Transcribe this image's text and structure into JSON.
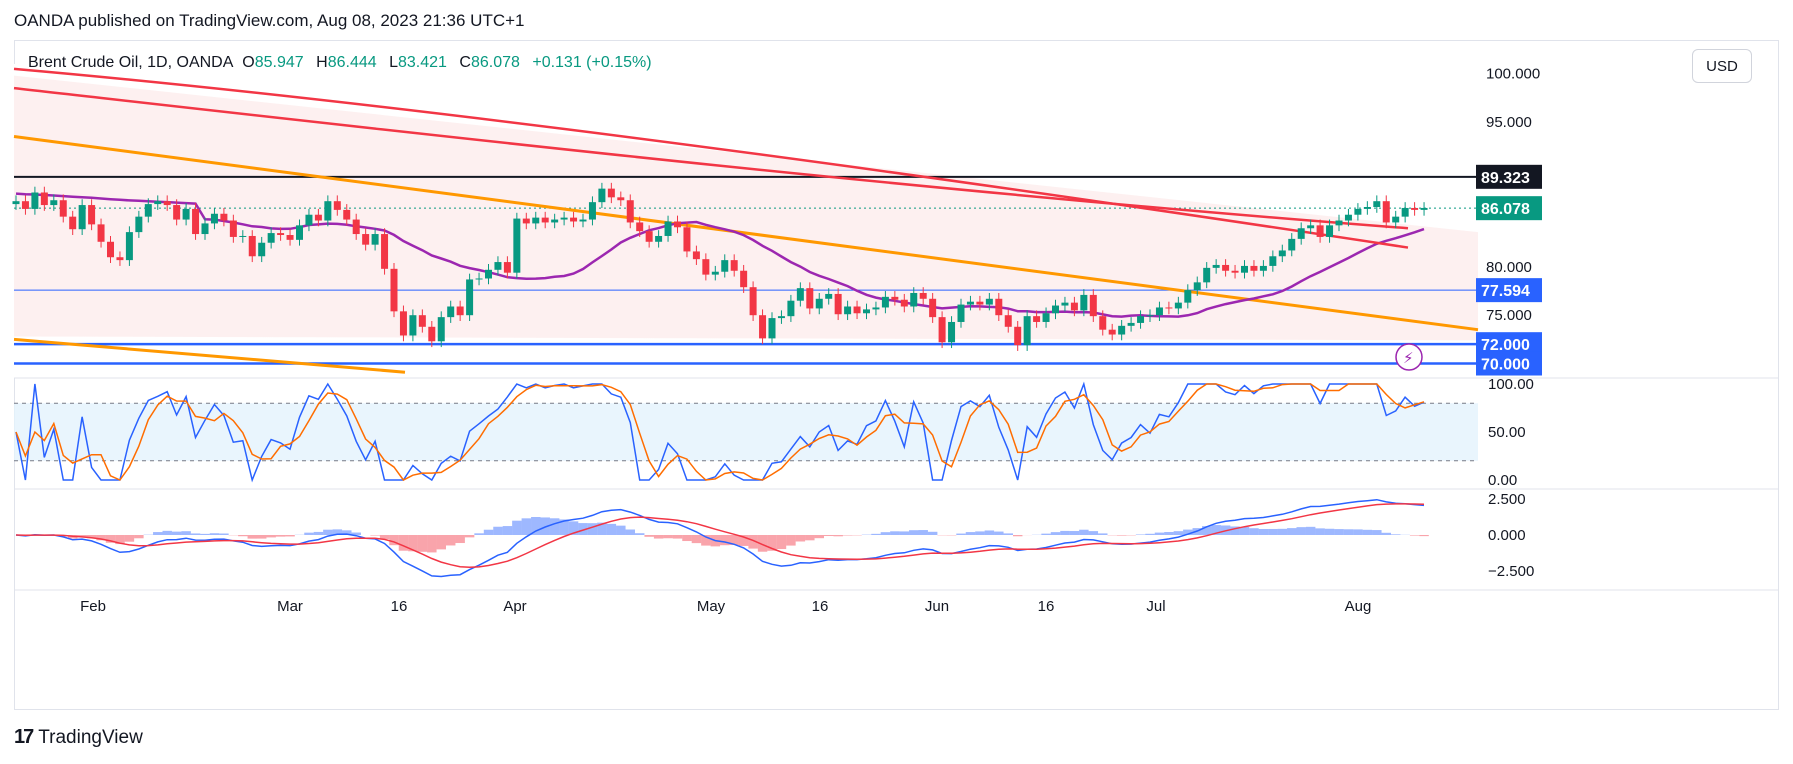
{
  "header": {
    "publisher_line": "OANDA published on TradingView.com, Aug 08, 2023 21:36 UTC+1"
  },
  "symbol": {
    "name": "Brent Crude Oil, 1D, OANDA",
    "open_label": "O",
    "open": "85.947",
    "high_label": "H",
    "high": "86.444",
    "low_label": "L",
    "low": "83.421",
    "close_label": "C",
    "close": "86.078",
    "change": "+0.131 (+0.15%)"
  },
  "currency_button": "USD",
  "colors": {
    "up": "#089981",
    "down": "#f23645",
    "ma_red": "#f23645",
    "ma_purple": "#9c27b0",
    "trendline": "#ff9800",
    "level": "#2962ff",
    "stoch_k": "#2962ff",
    "stoch_d": "#ff6d00",
    "macd": "#2962ff",
    "signal": "#f23645",
    "hist_pos": "#2962ff",
    "hist_neg": "#f23645"
  },
  "footer": {
    "brand": "TradingView"
  },
  "chart_data": {
    "type": "candlestick",
    "x_ticks": [
      "Feb",
      "Mar",
      "16",
      "Apr",
      "May",
      "16",
      "Jun",
      "16",
      "Jul",
      "Aug"
    ],
    "price_axis": {
      "ticks": [
        "100.000",
        "95.000",
        "80.000",
        "75.000"
      ],
      "labels": [
        {
          "text": "89.323",
          "kind": "line"
        },
        {
          "text": "86.078",
          "kind": "last"
        },
        {
          "text": "77.594",
          "kind": "level"
        },
        {
          "text": "72.000",
          "kind": "level"
        },
        {
          "text": "70.000",
          "kind": "level"
        }
      ]
    },
    "horizontal_levels": [
      89.323,
      77.594,
      72.0,
      70.0
    ],
    "last_price": 86.078,
    "ylim": [
      68.5,
      101
    ],
    "closes": [
      86.8,
      86.0,
      87.7,
      86.4,
      86.9,
      85.2,
      83.9,
      86.4,
      84.4,
      82.6,
      81.0,
      80.7,
      83.6,
      85.2,
      86.5,
      86.8,
      86.4,
      84.9,
      86.0,
      83.4,
      84.5,
      85.5,
      84.8,
      83.1,
      83.2,
      81.1,
      82.5,
      83.5,
      83.3,
      82.8,
      84.3,
      85.4,
      84.8,
      86.8,
      85.9,
      84.9,
      83.4,
      82.3,
      83.4,
      79.8,
      75.4,
      72.9,
      75.0,
      73.8,
      72.3,
      74.8,
      75.9,
      75.0,
      78.7,
      78.8,
      79.7,
      80.5,
      79.4,
      85.0,
      84.5,
      85.1,
      84.6,
      84.9,
      85.1,
      84.7,
      84.9,
      86.7,
      88.1,
      87.2,
      86.9,
      84.6,
      83.7,
      82.6,
      83.2,
      84.7,
      84.1,
      81.6,
      80.8,
      79.2,
      79.5,
      80.7,
      79.6,
      77.9,
      75.0,
      72.6,
      74.7,
      74.9,
      76.5,
      77.8,
      75.7,
      76.7,
      77.2,
      75.1,
      75.9,
      75.2,
      75.6,
      75.8,
      76.9,
      76.6,
      75.9,
      77.3,
      76.7,
      74.8,
      72.2,
      74.3,
      76.1,
      76.4,
      76.1,
      76.7,
      75.0,
      73.8,
      71.9,
      74.9,
      74.3,
      75.2,
      76.0,
      76.3,
      75.5,
      77.1,
      74.9,
      73.5,
      73.0,
      73.9,
      74.2,
      74.9,
      75.0,
      75.8,
      75.7,
      76.3,
      77.6,
      78.4,
      79.9,
      80.2,
      79.6,
      79.4,
      80.1,
      79.6,
      80.1,
      81.1,
      81.7,
      82.9,
      84.0,
      84.3,
      83.1,
      84.3,
      84.8,
      85.4,
      86.0,
      86.2,
      86.8,
      84.6,
      85.2,
      86.1,
      85.9,
      86.1
    ]
  },
  "stoch_data": {
    "ticks": [
      "100.00",
      "50.00",
      "0.00"
    ],
    "bands": [
      80,
      20
    ]
  },
  "macd_data": {
    "ticks": [
      "2.500",
      "0.000",
      "−2.500"
    ]
  }
}
